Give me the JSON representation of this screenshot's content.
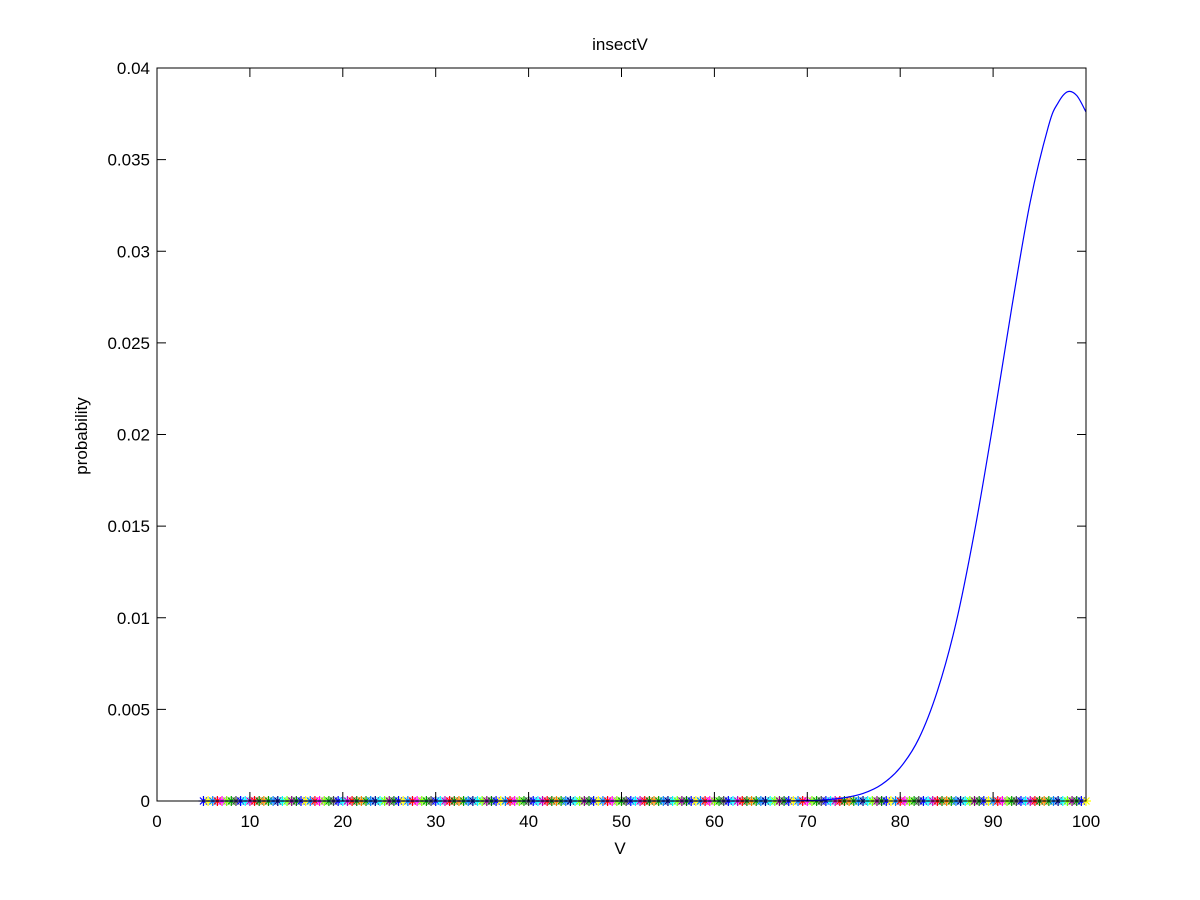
{
  "chart_data": {
    "type": "line",
    "title": "insectV",
    "xlabel": "V",
    "ylabel": "probability",
    "xlim": [
      0,
      100
    ],
    "ylim": [
      0,
      0.04
    ],
    "grid": false,
    "xticks": [
      "0",
      "10",
      "20",
      "30",
      "40",
      "50",
      "60",
      "70",
      "80",
      "90",
      "100"
    ],
    "yticks": [
      "0",
      "0.005",
      "0.01",
      "0.015",
      "0.02",
      "0.025",
      "0.03",
      "0.035",
      "0.04"
    ],
    "series": [
      {
        "type": "line",
        "color": "#0000ff",
        "x": [
          5,
          60,
          70,
          72,
          74,
          76,
          78,
          80,
          82,
          84,
          86,
          88,
          90,
          92,
          94,
          96,
          97,
          98,
          99,
          100
        ],
        "y": [
          0,
          0,
          2.6e-05,
          7e-05,
          0.000176,
          0.00041,
          0.0009,
          0.00182,
          0.0034,
          0.006,
          0.0097,
          0.0147,
          0.0206,
          0.0269,
          0.0327,
          0.0369,
          0.0381,
          0.0387,
          0.0385,
          0.0376
        ]
      },
      {
        "type": "scatter",
        "marker": "asterisk",
        "y_value": 0,
        "x_range": {
          "start": 5,
          "stop": 100,
          "step": 0.5
        },
        "colors": [
          "#0000ff",
          "#000080",
          "#ff0000",
          "#800080",
          "#00a000",
          "#ffff00",
          "#00ffff",
          "#ff00ff",
          "#008000",
          "#404040",
          "#0080ff",
          "#c000c0",
          "#80ff00",
          "#ff8000"
        ]
      }
    ]
  }
}
